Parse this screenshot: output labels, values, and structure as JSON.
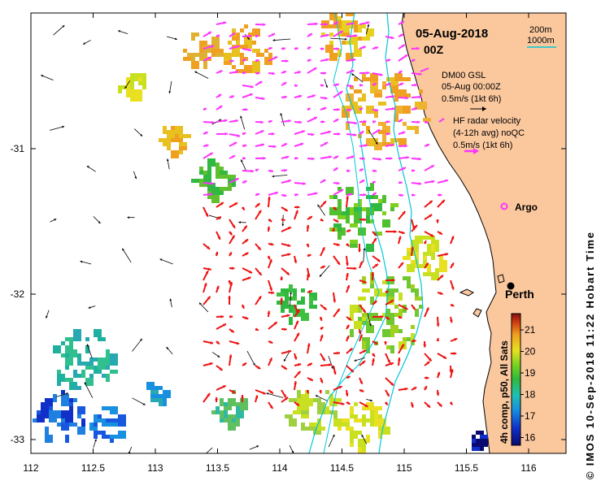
{
  "map": {
    "title_date": "05-Aug-2018",
    "title_time": "00Z",
    "side_caption": "© IMOS 10-Sep-2018 11:22 Hobart Time",
    "x_ticks": [
      "112",
      "112.5",
      "113",
      "113.5",
      "114",
      "114.5",
      "115",
      "115.5",
      "116"
    ],
    "y_ticks": [
      "-31",
      "-32",
      "-33"
    ],
    "x_range": [
      112,
      116.3
    ],
    "y_range": [
      -30.2,
      -33.1
    ]
  },
  "legend": {
    "bathy_200": "200m",
    "bathy_1000": "1000m",
    "model_name": "DM00 GSL",
    "model_time": "05-Aug 00:00Z",
    "model_scale": "0.5m/s (1kt 6h)",
    "radar_line1": "HF radar velocity",
    "radar_line2": "(4-12h avg) noQC",
    "radar_scale": "0.5m/s (1kt 6h)"
  },
  "places": {
    "argo": "Argo",
    "perth": "Perth"
  },
  "colorbar": {
    "ticks": [
      "21",
      "20",
      "19",
      "18",
      "17",
      "16"
    ],
    "label": "4h comp, p50, All Sats"
  },
  "colors": {
    "land": "#fbc89e",
    "coast": "#000000",
    "isobath": "#00c8d8",
    "model_arrows": "#000000",
    "radar_north": "#ff33ff",
    "radar_south": "#ee1111"
  }
}
